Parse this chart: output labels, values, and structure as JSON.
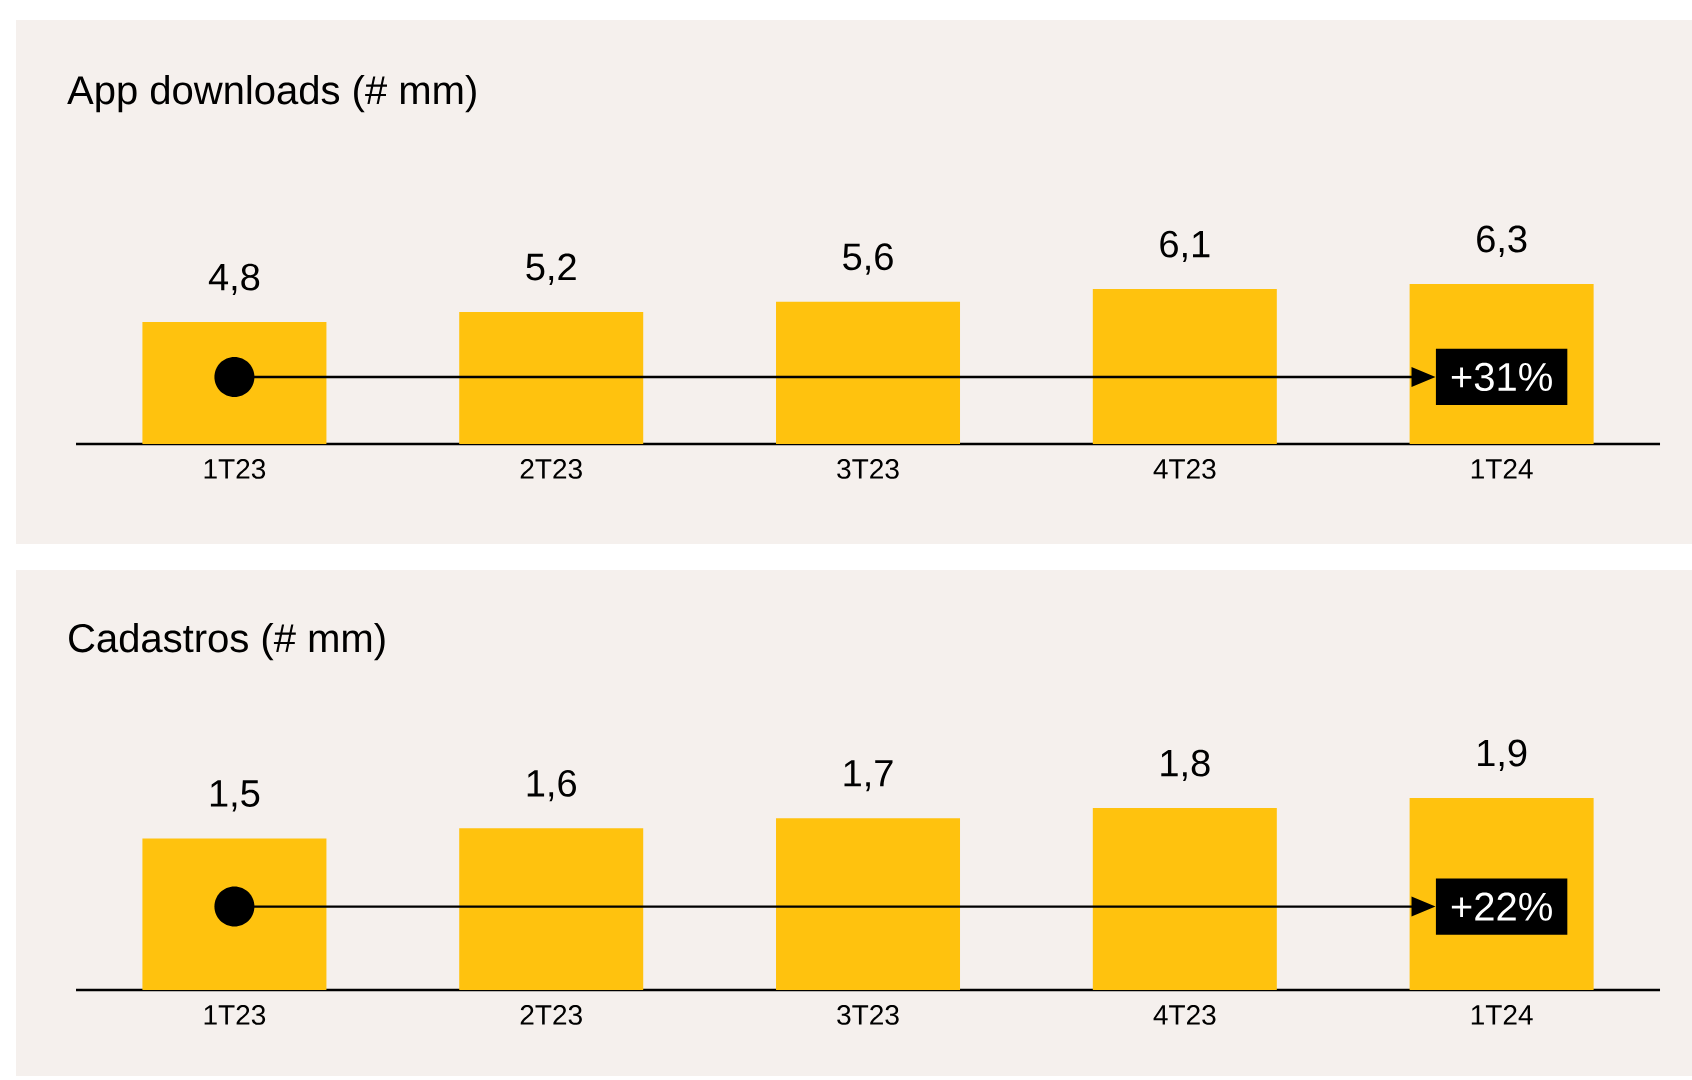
{
  "chart_data": [
    {
      "type": "bar",
      "title": "App downloads (# mm)",
      "categories": [
        "1T23",
        "2T23",
        "3T23",
        "4T23",
        "1T24"
      ],
      "values": [
        4.8,
        5.2,
        5.6,
        6.1,
        6.3
      ],
      "value_labels": [
        "4,8",
        "5,2",
        "5,6",
        "6,1",
        "6,3"
      ],
      "color": "#ffc20e",
      "annotations": [
        "+31%"
      ]
    },
    {
      "type": "bar",
      "title": "Cadastros (# mm)",
      "categories": [
        "1T23",
        "2T23",
        "3T23",
        "4T23",
        "1T24"
      ],
      "values": [
        1.5,
        1.6,
        1.7,
        1.8,
        1.9
      ],
      "value_labels": [
        "1,5",
        "1,6",
        "1,7",
        "1,8",
        "1,9"
      ],
      "color": "#ffc20e",
      "annotations": [
        "+22%"
      ]
    }
  ]
}
